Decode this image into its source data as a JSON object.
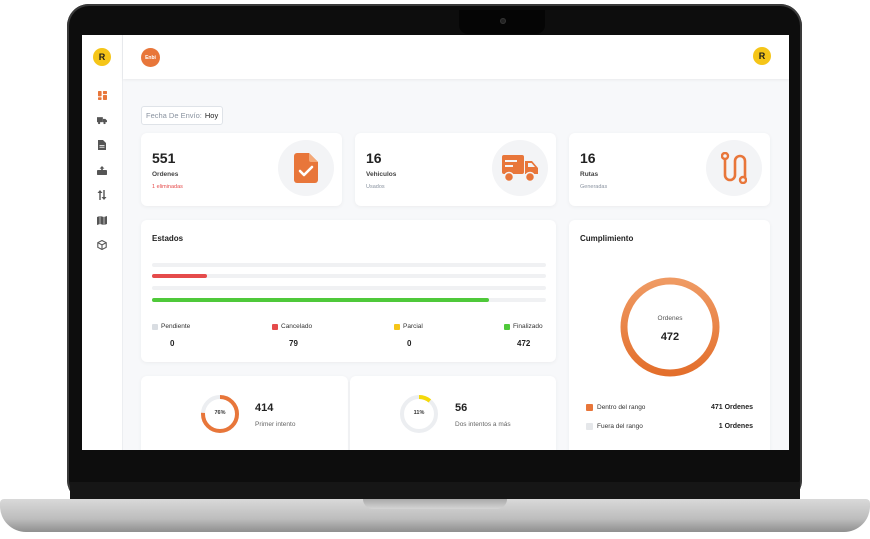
{
  "user": {
    "initial": "R"
  },
  "brand": {
    "logo_text": "Enbi",
    "accent": "#e8763a"
  },
  "sidebar": {
    "items": [
      {
        "icon": "dashboard-icon"
      },
      {
        "icon": "truck-icon"
      },
      {
        "icon": "document-icon"
      },
      {
        "icon": "box-upload-icon"
      },
      {
        "icon": "sort-arrows-icon"
      },
      {
        "icon": "map-icon"
      },
      {
        "icon": "cube-icon"
      }
    ]
  },
  "filter": {
    "label": "Fecha De Envío:",
    "value": "Hoy"
  },
  "stats": [
    {
      "value": "551",
      "label": "Ordenes",
      "sub": "1 eliminadas",
      "sub_color": "#e54b4b",
      "icon": "document-check-icon"
    },
    {
      "value": "16",
      "label": "Vehiculos",
      "sub": "Usados",
      "icon": "truck-icon"
    },
    {
      "value": "16",
      "label": "Rutas",
      "sub": "Generadas",
      "icon": "route-icon"
    }
  ],
  "estados": {
    "title": "Estados",
    "bars": [
      {
        "color": "#e54b4b",
        "fraction": 0.14
      },
      {
        "color": "#4fc93a",
        "fraction": 0.856
      }
    ],
    "legend": [
      {
        "label": "Pendiente",
        "value": "0",
        "color": "#d9dde2"
      },
      {
        "label": "Cancelado",
        "value": "79",
        "color": "#e54b4b"
      },
      {
        "label": "Parcial",
        "value": "0",
        "color": "#f5c518"
      },
      {
        "label": "Finalizado",
        "value": "472",
        "color": "#4fc93a"
      }
    ]
  },
  "intentos": [
    {
      "percent_label": "76%",
      "fraction": 0.76,
      "color": "#e8763a",
      "value": "414",
      "label": "Primer intento"
    },
    {
      "percent_label": "11%",
      "fraction": 0.11,
      "color": "#f5d90a",
      "value": "56",
      "label": "Dos intentos a más"
    }
  ],
  "cumplimiento": {
    "title": "Cumplimiento",
    "center_label": "Ordenes",
    "center_value": "472",
    "rows": [
      {
        "label": "Dentro del rango",
        "value": "471 Ordenes",
        "color": "#e8763a"
      },
      {
        "label": "Fuera del rango",
        "value": "1 Ordenes",
        "color": "#e5e7ea"
      }
    ]
  }
}
